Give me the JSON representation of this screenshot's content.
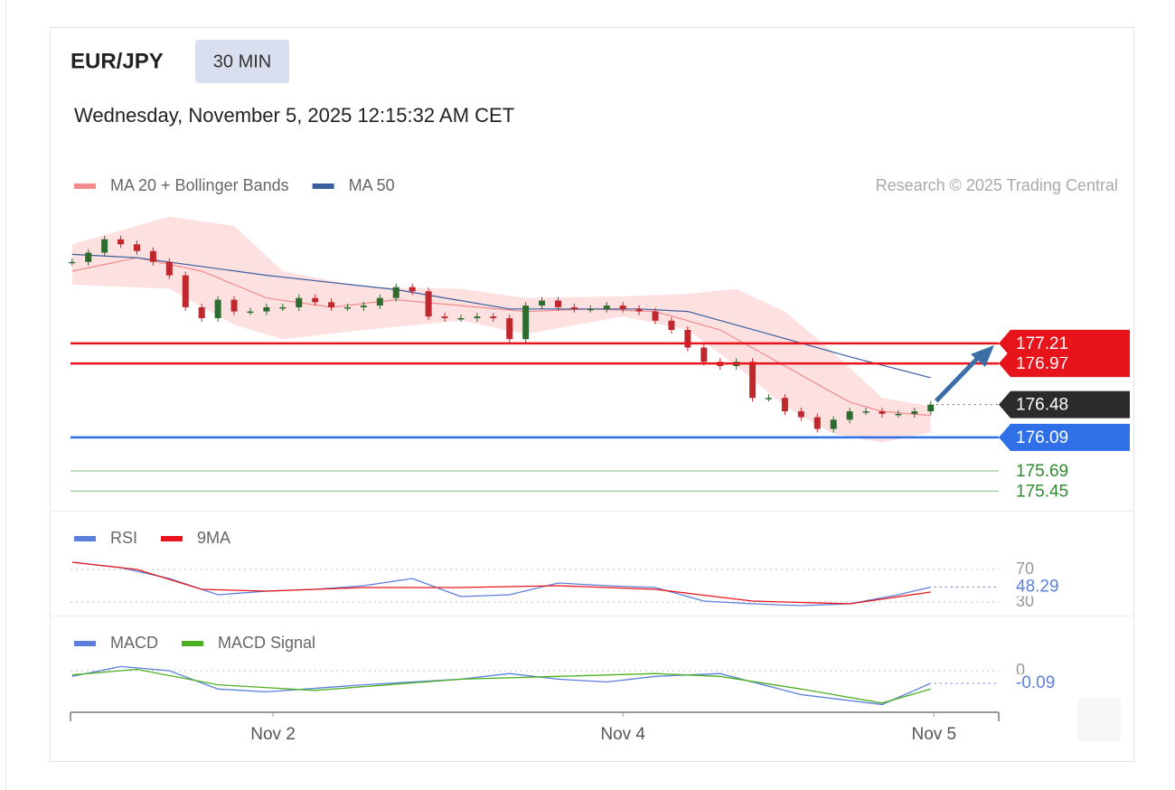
{
  "header": {
    "symbol": "EUR/JPY",
    "interval": "30 MIN",
    "timestamp": "Wednesday, November 5, 2025 12:15:32 AM CET",
    "credit": "Research © 2025 Trading Central"
  },
  "chart_data": [
    {
      "type": "candlestick",
      "ylim": [
        175.27,
        178.77
      ],
      "up_color": "#2e6b2e",
      "down_color": "#c0282d",
      "close": [
        178.18,
        178.29,
        178.45,
        178.39,
        178.31,
        178.18,
        178.02,
        177.64,
        177.51,
        177.73,
        177.59,
        177.59,
        177.64,
        177.64,
        177.75,
        177.7,
        177.64,
        177.64,
        177.66,
        177.75,
        177.88,
        177.83,
        177.53,
        177.51,
        177.51,
        177.53,
        177.51,
        177.26,
        177.66,
        177.72,
        177.64,
        177.62,
        177.62,
        177.66,
        177.62,
        177.59,
        177.48,
        177.37,
        177.16,
        176.99,
        176.94,
        176.99,
        176.56,
        176.56,
        176.4,
        176.33,
        176.19,
        176.3,
        176.4,
        176.4,
        176.37,
        176.37,
        176.4,
        176.48
      ],
      "series": [
        {
          "name": "MA 20 + Bollinger Bands",
          "color": "#f28b8b",
          "x": [
            0,
            4,
            8,
            12,
            16,
            20,
            24,
            28,
            32,
            36,
            40,
            44,
            48,
            50,
            53
          ],
          "values": [
            178.07,
            178.23,
            178.07,
            177.75,
            177.64,
            177.73,
            177.66,
            177.59,
            177.62,
            177.59,
            177.37,
            176.94,
            176.51,
            176.4,
            176.35
          ]
        },
        {
          "name": "MA 50",
          "color": "#3a5f9e",
          "x": [
            0,
            4,
            12,
            20,
            27,
            35,
            38,
            43,
            48,
            53
          ],
          "values": [
            178.27,
            178.23,
            178.02,
            177.85,
            177.62,
            177.62,
            177.59,
            177.32,
            177.05,
            176.8
          ]
        }
      ],
      "bands": {
        "color": "#fde0e0",
        "x": [
          0,
          6,
          10,
          13,
          18,
          24,
          28,
          34,
          38,
          41,
          44,
          47,
          50,
          53
        ],
        "upper": [
          178.39,
          178.72,
          178.61,
          178.07,
          177.88,
          177.86,
          177.75,
          177.77,
          177.8,
          177.86,
          177.59,
          177.1,
          176.56,
          176.46
        ],
        "lower": [
          177.91,
          177.86,
          177.43,
          177.26,
          177.37,
          177.48,
          177.32,
          177.53,
          177.37,
          176.94,
          176.46,
          176.13,
          176.03,
          176.15
        ]
      },
      "levels": [
        {
          "value": 177.21,
          "color": "#e8141b",
          "tag": true,
          "line": "solid"
        },
        {
          "value": 176.97,
          "color": "#e8141b",
          "tag": true,
          "line": "solid"
        },
        {
          "value": 176.48,
          "color": "#2b2b2b",
          "tag": true,
          "line": "dotted"
        },
        {
          "value": 176.09,
          "color": "#2f6fe8",
          "tag": true,
          "line": "solid"
        },
        {
          "value": 175.69,
          "color": "#2e8b2e",
          "tag": false,
          "line": "solid"
        },
        {
          "value": 175.45,
          "color": "#2e8b2e",
          "tag": false,
          "line": "solid"
        }
      ]
    },
    {
      "type": "line",
      "ylim": [
        10,
        90
      ],
      "yticks": [
        70,
        30
      ],
      "series": [
        {
          "name": "RSI",
          "color": "#5b7fdb",
          "x": [
            0,
            3,
            6,
            9,
            12,
            15,
            18,
            21,
            24,
            27,
            30,
            33,
            36,
            39,
            42,
            45,
            48,
            51,
            53
          ],
          "values": [
            78.9,
            72.2,
            58.9,
            38.9,
            43.3,
            45.6,
            50.0,
            58.9,
            36.7,
            38.9,
            53.3,
            50.0,
            47.8,
            31.1,
            27.8,
            25.6,
            27.8,
            38.9,
            48.29
          ]
        },
        {
          "name": "9MA",
          "color": "#e8141b",
          "x": [
            0,
            4,
            8,
            12,
            18,
            24,
            30,
            36,
            42,
            48,
            53
          ],
          "values": [
            78.9,
            70.0,
            45.6,
            43.3,
            47.8,
            47.8,
            50.0,
            45.6,
            31.1,
            27.8,
            42.2
          ]
        }
      ]
    },
    {
      "type": "line",
      "ylim": [
        -0.28,
        0.08
      ],
      "yticks": [
        0
      ],
      "xlim": [
        -0.1,
        57.2
      ],
      "xticks": [
        {
          "value": 12.4,
          "label": "Nov 2"
        },
        {
          "value": 34.0,
          "label": "Nov 4"
        },
        {
          "value": 53.2,
          "label": "Nov 5"
        }
      ],
      "series": [
        {
          "name": "MACD",
          "color": "#5b7fdb",
          "x": [
            0,
            3,
            6,
            9,
            12,
            18,
            24,
            27,
            30,
            33,
            36,
            40,
            45,
            50,
            53
          ],
          "values": [
            -0.04,
            0.03,
            0.0,
            -0.13,
            -0.15,
            -0.1,
            -0.06,
            -0.02,
            -0.06,
            -0.08,
            -0.04,
            -0.02,
            -0.17,
            -0.24,
            -0.09
          ]
        },
        {
          "name": "MACD Signal",
          "color": "#4caf20",
          "x": [
            0,
            4,
            9,
            15,
            24,
            30,
            36,
            40,
            45,
            50,
            53
          ],
          "values": [
            -0.03,
            0.01,
            -0.1,
            -0.14,
            -0.06,
            -0.04,
            -0.02,
            -0.04,
            -0.13,
            -0.23,
            -0.13
          ]
        }
      ]
    }
  ]
}
